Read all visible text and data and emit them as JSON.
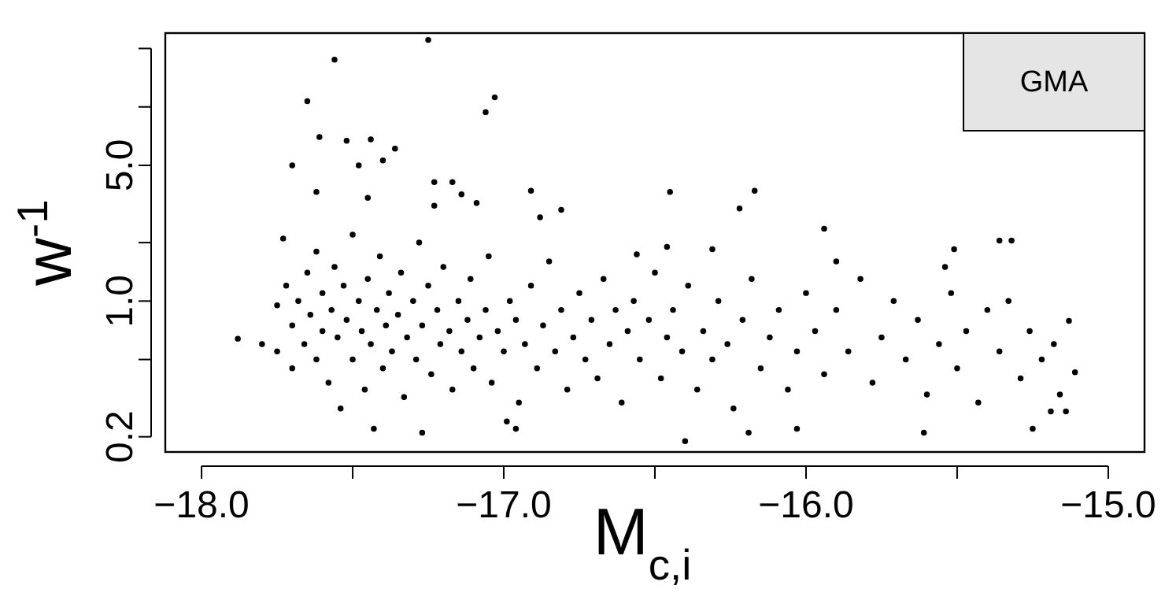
{
  "chart_data": {
    "type": "scatter",
    "xlabel": "M$_{c,i}$",
    "ylabel": "w$^{-1}$",
    "log": "y",
    "marker": "circle",
    "legend": "top right",
    "xlim": [
      -18.12,
      -14.88
    ],
    "ylim": [
      0.167,
      24
    ],
    "xticks": [
      {
        "value": -18,
        "label": "−18.0"
      },
      {
        "value": -17.5,
        "label": null
      },
      {
        "value": -17,
        "label": "−17.0"
      },
      {
        "value": -16.5,
        "label": null
      },
      {
        "value": -16,
        "label": "−16.0"
      },
      {
        "value": -15.5,
        "label": null
      },
      {
        "value": -15,
        "label": "−15.0"
      }
    ],
    "yticks": [
      0.2,
      {
        "value": 0.5,
        "label": null
      },
      {
        "value": 1,
        "label": "1.0"
      },
      {
        "value": 2,
        "label": null
      },
      {
        "value": 5,
        "label": "5.0"
      },
      {
        "value": 10,
        "label": null
      },
      {
        "value": 20,
        "label": null
      }
    ],
    "series": [
      {
        "name": "GMA",
        "color": "#000000",
        "x": [
          -17.25,
          -17.56,
          -17.65,
          -17.03,
          -17.06,
          -17.61,
          -17.7,
          -17.44,
          -17.52,
          -17.36,
          -17.4,
          -17.48,
          -17.23,
          -17.17,
          -17.62,
          -17.14,
          -16.91,
          -17.09,
          -17.45,
          -16.81,
          -17.23,
          -16.88,
          -17.73,
          -17.88,
          -17.8,
          -17.27,
          -17.43,
          -16.99,
          -16.96,
          -16.45,
          -16.17,
          -16.22,
          -15.94,
          -15.9,
          -15.51,
          -15.54,
          -15.36,
          -15.32,
          -15.13,
          -15.11,
          -15.19,
          -15.14,
          -15.25,
          -15.61,
          -16.4,
          -16.03,
          -16.19,
          -16.31,
          -16.46,
          -16.56,
          -17.75,
          -17.75,
          -17.72,
          -17.7,
          -17.7,
          -17.68,
          -17.66,
          -17.65,
          -17.64,
          -17.62,
          -17.62,
          -17.6,
          -17.6,
          -17.58,
          -17.57,
          -17.56,
          -17.55,
          -17.54,
          -17.53,
          -17.52,
          -17.5,
          -17.5,
          -17.48,
          -17.47,
          -17.46,
          -17.45,
          -17.44,
          -17.42,
          -17.41,
          -17.4,
          -17.39,
          -17.38,
          -17.37,
          -17.35,
          -17.34,
          -17.33,
          -17.32,
          -17.3,
          -17.29,
          -17.28,
          -17.27,
          -17.25,
          -17.24,
          -17.22,
          -17.21,
          -17.2,
          -17.18,
          -17.17,
          -17.15,
          -17.14,
          -17.12,
          -17.11,
          -17.1,
          -17.08,
          -17.06,
          -17.05,
          -17.04,
          -17.02,
          -17,
          -16.98,
          -16.96,
          -16.95,
          -16.93,
          -16.91,
          -16.89,
          -16.87,
          -16.85,
          -16.83,
          -16.81,
          -16.79,
          -16.77,
          -16.75,
          -16.73,
          -16.71,
          -16.69,
          -16.67,
          -16.65,
          -16.63,
          -16.61,
          -16.59,
          -16.57,
          -16.55,
          -16.52,
          -16.5,
          -16.48,
          -16.46,
          -16.44,
          -16.41,
          -16.39,
          -16.36,
          -16.34,
          -16.31,
          -16.29,
          -16.26,
          -16.24,
          -16.21,
          -16.18,
          -16.15,
          -16.12,
          -16.09,
          -16.06,
          -16.03,
          -16,
          -15.97,
          -15.94,
          -15.9,
          -15.86,
          -15.82,
          -15.78,
          -15.75,
          -15.71,
          -15.67,
          -15.63,
          -15.6,
          -15.56,
          -15.52,
          -15.5,
          -15.47,
          -15.43,
          -15.4,
          -15.36,
          -15.33,
          -15.29,
          -15.26,
          -15.22,
          -15.18,
          -15.16
        ],
        "values": [
          22.1,
          17.5,
          10.7,
          11.2,
          9.4,
          7.0,
          5.0,
          6.8,
          6.7,
          6.1,
          5.3,
          5.0,
          4.1,
          4.1,
          3.65,
          3.55,
          3.7,
          3.2,
          3.4,
          2.95,
          3.1,
          2.7,
          2.1,
          0.64,
          0.6,
          0.21,
          0.22,
          0.24,
          0.22,
          3.65,
          3.7,
          3.0,
          2.36,
          1.6,
          1.85,
          1.5,
          2.05,
          2.05,
          0.79,
          0.43,
          0.27,
          0.27,
          0.22,
          0.21,
          0.19,
          0.22,
          0.21,
          1.85,
          1.9,
          1.74,
          0.95,
          0.55,
          1.2,
          0.75,
          0.45,
          1.0,
          0.6,
          1.4,
          0.85,
          0.5,
          1.8,
          0.7,
          1.1,
          0.38,
          0.9,
          1.5,
          0.65,
          0.28,
          1.2,
          0.8,
          0.5,
          2.2,
          1.0,
          0.7,
          0.35,
          1.3,
          0.6,
          0.9,
          1.7,
          0.45,
          0.75,
          1.1,
          0.55,
          0.85,
          1.4,
          0.32,
          0.65,
          1.0,
          0.5,
          2.0,
          0.75,
          1.2,
          0.42,
          0.9,
          0.6,
          1.5,
          0.7,
          0.35,
          1.0,
          0.55,
          0.8,
          1.3,
          0.45,
          0.65,
          0.9,
          1.7,
          0.38,
          0.7,
          0.55,
          1.0,
          0.8,
          0.3,
          0.6,
          1.2,
          0.45,
          0.75,
          1.6,
          0.55,
          0.9,
          0.35,
          0.65,
          1.1,
          0.5,
          0.8,
          0.4,
          1.3,
          0.6,
          0.9,
          0.3,
          0.7,
          1.0,
          0.5,
          0.8,
          1.4,
          0.4,
          0.65,
          0.9,
          0.55,
          1.2,
          0.35,
          0.7,
          0.5,
          1.0,
          0.6,
          0.28,
          0.8,
          1.3,
          0.45,
          0.65,
          0.9,
          0.35,
          0.55,
          1.1,
          0.7,
          0.42,
          0.9,
          0.55,
          1.3,
          0.38,
          0.65,
          1.0,
          0.5,
          0.8,
          0.33,
          0.6,
          1.1,
          0.45,
          0.7,
          0.3,
          0.9,
          0.55,
          1.0,
          0.4,
          0.7,
          0.5,
          0.6,
          0.33
        ]
      }
    ]
  }
}
